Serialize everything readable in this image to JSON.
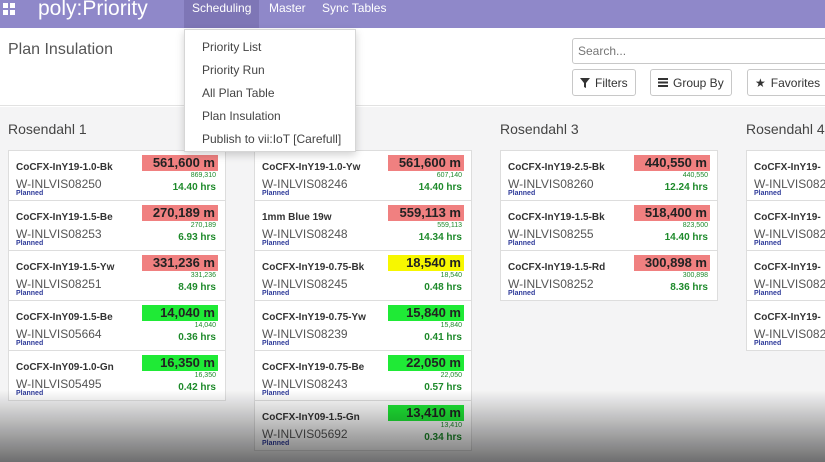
{
  "app": {
    "name": "poly:Priority"
  },
  "nav": {
    "scheduling": "Scheduling",
    "master": "Master",
    "sync_tables": "Sync Tables"
  },
  "menu": [
    "Priority List",
    "Priority Run",
    "All Plan Table",
    "Plan Insulation",
    "Publish to vii:IoT [Carefull]"
  ],
  "page": {
    "title": "Plan Insulation"
  },
  "search": {
    "placeholder": "Search..."
  },
  "buttons": {
    "filters": "Filters",
    "group_by": "Group By",
    "favorites": "Favorites"
  },
  "columns": [
    {
      "title": "Rosendahl 1",
      "cards": [
        {
          "name": "CoCFX-InY19-1.0-Bk",
          "code": "W-INLVIS08250",
          "status": "Planned",
          "qty": "561,600 m",
          "sub": "869,310",
          "hrs": "14.40 hrs",
          "color": "red"
        },
        {
          "name": "CoCFX-InY19-1.5-Be",
          "code": "W-INLVIS08253",
          "status": "Planned",
          "qty": "270,189 m",
          "sub": "270,189",
          "hrs": "6.93 hrs",
          "color": "red"
        },
        {
          "name": "CoCFX-InY19-1.5-Yw",
          "code": "W-INLVIS08251",
          "status": "Planned",
          "qty": "331,236 m",
          "sub": "331,236",
          "hrs": "8.49 hrs",
          "color": "red"
        },
        {
          "name": "CoCFX-InY09-1.5-Be",
          "code": "W-INLVIS05664",
          "status": "Planned",
          "qty": "14,040 m",
          "sub": "14,040",
          "hrs": "0.36 hrs",
          "color": "green"
        },
        {
          "name": "CoCFX-InY09-1.0-Gn",
          "code": "W-INLVIS05495",
          "status": "Planned",
          "qty": "16,350 m",
          "sub": "16,350",
          "hrs": "0.42 hrs",
          "color": "green"
        }
      ]
    },
    {
      "title": "",
      "cards": [
        {
          "name": "CoCFX-InY19-1.0-Yw",
          "code": "W-INLVIS08246",
          "status": "Planned",
          "qty": "561,600 m",
          "sub": "607,140",
          "hrs": "14.40 hrs",
          "color": "red"
        },
        {
          "name": "1mm Blue 19w",
          "code": "W-INLVIS08248",
          "status": "Planned",
          "qty": "559,113 m",
          "sub": "559,113",
          "hrs": "14.34 hrs",
          "color": "red"
        },
        {
          "name": "CoCFX-InY19-0.75-Bk",
          "code": "W-INLVIS08245",
          "status": "Planned",
          "qty": "18,540 m",
          "sub": "18,540",
          "hrs": "0.48 hrs",
          "color": "yellow"
        },
        {
          "name": "CoCFX-InY19-0.75-Yw",
          "code": "W-INLVIS08239",
          "status": "Planned",
          "qty": "15,840 m",
          "sub": "15,840",
          "hrs": "0.41 hrs",
          "color": "green"
        },
        {
          "name": "CoCFX-InY19-0.75-Be",
          "code": "W-INLVIS08243",
          "status": "Planned",
          "qty": "22,050 m",
          "sub": "22,050",
          "hrs": "0.57 hrs",
          "color": "green"
        },
        {
          "name": "CoCFX-InY09-1.5-Gn",
          "code": "W-INLVIS05692",
          "status": "Planned",
          "qty": "13,410 m",
          "sub": "13,410",
          "hrs": "0.34 hrs",
          "color": "green"
        }
      ]
    },
    {
      "title": "Rosendahl 3",
      "cards": [
        {
          "name": "CoCFX-InY19-2.5-Bk",
          "code": "W-INLVIS08260",
          "status": "Planned",
          "qty": "440,550 m",
          "sub": "440,550",
          "hrs": "12.24 hrs",
          "color": "red"
        },
        {
          "name": "CoCFX-InY19-1.5-Bk",
          "code": "W-INLVIS08255",
          "status": "Planned",
          "qty": "518,400 m",
          "sub": "823,500",
          "hrs": "14.40 hrs",
          "color": "red"
        },
        {
          "name": "CoCFX-InY19-1.5-Rd",
          "code": "W-INLVIS08252",
          "status": "Planned",
          "qty": "300,898 m",
          "sub": "300,898",
          "hrs": "8.36 hrs",
          "color": "red"
        }
      ]
    },
    {
      "title": "Rosendahl 4",
      "cards": [
        {
          "name": "CoCFX-InY19-",
          "code": "W-INLVIS082",
          "status": "Planned"
        },
        {
          "name": "CoCFX-InY19-",
          "code": "W-INLVIS082",
          "status": "Planned"
        },
        {
          "name": "CoCFX-InY19-",
          "code": "W-INLVIS082",
          "status": "Planned"
        },
        {
          "name": "CoCFX-InY19-",
          "code": "W-INLVIS082",
          "status": "Planned"
        }
      ]
    }
  ]
}
